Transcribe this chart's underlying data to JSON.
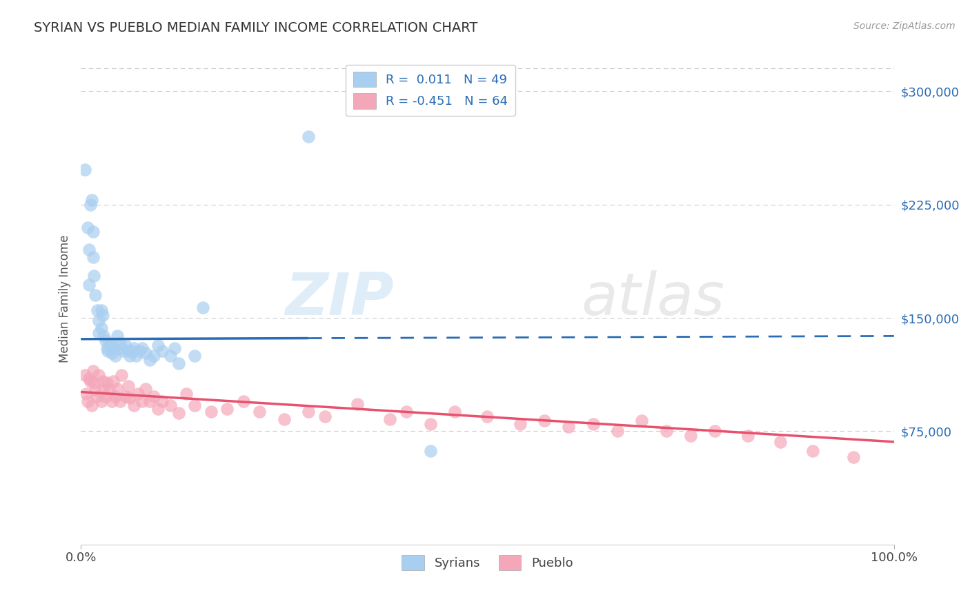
{
  "title": "SYRIAN VS PUEBLO MEDIAN FAMILY INCOME CORRELATION CHART",
  "source_text": "Source: ZipAtlas.com",
  "ylabel": "Median Family Income",
  "xlim": [
    0,
    1
  ],
  "ylim": [
    0,
    325000
  ],
  "ytick_values": [
    75000,
    150000,
    225000,
    300000
  ],
  "ytick_labels": [
    "$75,000",
    "$150,000",
    "$225,000",
    "$300,000"
  ],
  "xtick_values": [
    0,
    1
  ],
  "xtick_labels": [
    "0.0%",
    "100.0%"
  ],
  "watermark_zip": "ZIP",
  "watermark_atlas": "atlas",
  "legend_entry1": "R =  0.011   N = 49",
  "legend_entry2": "R = -0.451   N = 64",
  "legend_label1": "Syrians",
  "legend_label2": "Pueblo",
  "syrian_color": "#a8cef0",
  "pueblo_color": "#f4a7b9",
  "syrian_line_color": "#2b6db5",
  "pueblo_line_color": "#e8516e",
  "background_color": "#ffffff",
  "grid_color": "#cccccc",
  "syrian_line_solid_end": 0.28,
  "syrian_line_y0": 136000,
  "syrian_line_y1": 138000,
  "pueblo_line_y0": 101000,
  "pueblo_line_y1": 68000,
  "syrian_scatter_x": [
    0.005,
    0.008,
    0.01,
    0.01,
    0.012,
    0.013,
    0.015,
    0.015,
    0.016,
    0.018,
    0.02,
    0.022,
    0.022,
    0.025,
    0.025,
    0.027,
    0.028,
    0.03,
    0.032,
    0.033,
    0.035,
    0.037,
    0.038,
    0.04,
    0.042,
    0.045,
    0.048,
    0.05,
    0.052,
    0.055,
    0.058,
    0.06,
    0.063,
    0.065,
    0.068,
    0.072,
    0.075,
    0.08,
    0.085,
    0.09,
    0.095,
    0.1,
    0.11,
    0.115,
    0.12,
    0.14,
    0.15,
    0.28,
    0.43
  ],
  "syrian_scatter_y": [
    248000,
    210000,
    195000,
    172000,
    225000,
    228000,
    207000,
    190000,
    178000,
    165000,
    155000,
    148000,
    140000,
    155000,
    143000,
    152000,
    138000,
    135000,
    130000,
    128000,
    132000,
    133000,
    127000,
    130000,
    125000,
    138000,
    133000,
    130000,
    128000,
    132000,
    128000,
    125000,
    128000,
    130000,
    125000,
    128000,
    130000,
    127000,
    122000,
    125000,
    132000,
    128000,
    125000,
    130000,
    120000,
    125000,
    157000,
    270000,
    62000
  ],
  "pueblo_scatter_x": [
    0.005,
    0.007,
    0.008,
    0.01,
    0.012,
    0.013,
    0.015,
    0.016,
    0.018,
    0.02,
    0.022,
    0.025,
    0.027,
    0.028,
    0.03,
    0.032,
    0.035,
    0.038,
    0.04,
    0.042,
    0.045,
    0.048,
    0.05,
    0.055,
    0.058,
    0.06,
    0.065,
    0.07,
    0.075,
    0.08,
    0.085,
    0.09,
    0.095,
    0.1,
    0.11,
    0.12,
    0.13,
    0.14,
    0.16,
    0.18,
    0.2,
    0.22,
    0.25,
    0.28,
    0.3,
    0.34,
    0.38,
    0.4,
    0.43,
    0.46,
    0.5,
    0.54,
    0.57,
    0.6,
    0.63,
    0.66,
    0.69,
    0.72,
    0.75,
    0.78,
    0.82,
    0.86,
    0.9,
    0.95
  ],
  "pueblo_scatter_y": [
    112000,
    100000,
    95000,
    110000,
    108000,
    92000,
    115000,
    107000,
    102000,
    98000,
    112000,
    95000,
    108000,
    103000,
    98000,
    107000,
    102000,
    95000,
    108000,
    98000,
    103000,
    95000,
    112000,
    98000,
    105000,
    97000,
    92000,
    100000,
    95000,
    103000,
    95000,
    98000,
    90000,
    95000,
    92000,
    87000,
    100000,
    92000,
    88000,
    90000,
    95000,
    88000,
    83000,
    88000,
    85000,
    93000,
    83000,
    88000,
    80000,
    88000,
    85000,
    80000,
    82000,
    78000,
    80000,
    75000,
    82000,
    75000,
    72000,
    75000,
    72000,
    68000,
    62000,
    58000
  ]
}
